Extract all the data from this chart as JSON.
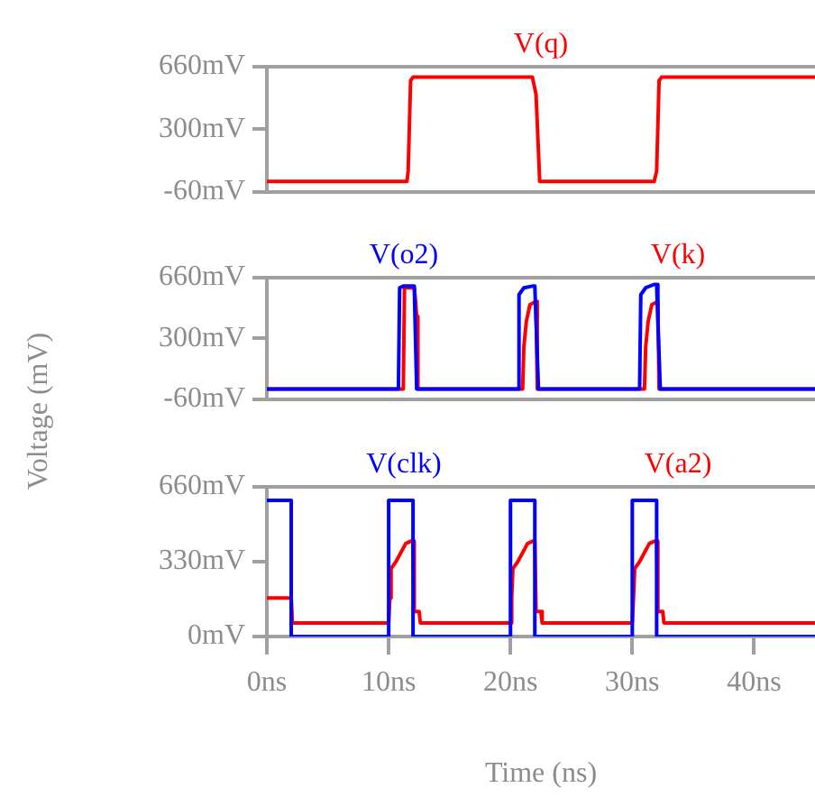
{
  "chart_data": [
    {
      "type": "line",
      "xlim": [
        0,
        45
      ],
      "ylim": [
        -60,
        660
      ],
      "yticks": [
        {
          "value": -60,
          "label": "-60mV"
        },
        {
          "value": 300,
          "label": "300mV"
        },
        {
          "value": 660,
          "label": "660mV"
        }
      ],
      "tick_labels": "y",
      "legend": "top",
      "grid": false,
      "series": [
        {
          "name": "V(q)",
          "color": "#ff0000",
          "x": [
            0,
            11.5,
            11.6,
            11.8,
            12.0,
            21.8,
            22.1,
            22.4,
            31.8,
            32.0,
            32.2,
            32.4,
            45
          ],
          "values": [
            0,
            0,
            60,
            580,
            600,
            600,
            500,
            0,
            0,
            60,
            580,
            600,
            600
          ]
        }
      ]
    },
    {
      "type": "line",
      "xlim": [
        0,
        45
      ],
      "ylim": [
        -60,
        660
      ],
      "yticks": [
        {
          "value": -60,
          "label": "-60mV"
        },
        {
          "value": 300,
          "label": "300mV"
        },
        {
          "value": 660,
          "label": "660mV"
        }
      ],
      "tick_labels": "y",
      "legend": "top",
      "grid": false,
      "ylabel": "Voltage (mV)",
      "series": [
        {
          "name": "V(o2)",
          "color": "#0000ff",
          "x": [
            0,
            10.8,
            10.9,
            11.2,
            12.1,
            12.3,
            20.6,
            20.7,
            21.1,
            21.8,
            22.0,
            22.1,
            22.3,
            30.6,
            30.7,
            31.1,
            31.8,
            32.0,
            32.1,
            32.3,
            45
          ],
          "values": [
            0,
            0,
            600,
            610,
            610,
            0,
            0,
            560,
            600,
            610,
            610,
            400,
            0,
            0,
            560,
            600,
            620,
            620,
            400,
            0,
            0
          ]
        },
        {
          "name": "V(k)",
          "color": "#ff0000",
          "x": [
            0,
            11.2,
            11.3,
            12.1,
            12.2,
            12.3,
            12.4,
            21.0,
            21.1,
            21.3,
            21.6,
            22.1,
            22.2,
            31.0,
            31.1,
            31.3,
            31.6,
            32.1,
            32.2,
            45
          ],
          "values": [
            0,
            0,
            600,
            600,
            530,
            430,
            0,
            0,
            250,
            400,
            500,
            520,
            0,
            0,
            250,
            400,
            500,
            520,
            0,
            0
          ]
        }
      ]
    },
    {
      "type": "line",
      "xlim": [
        0,
        45
      ],
      "xticks": [
        {
          "value": 0,
          "label": "0ns"
        },
        {
          "value": 10,
          "label": "10ns"
        },
        {
          "value": 20,
          "label": "20ns"
        },
        {
          "value": 30,
          "label": "30ns"
        },
        {
          "value": 40,
          "label": "40ns"
        }
      ],
      "ylim": [
        0,
        660
      ],
      "yticks": [
        {
          "value": 0,
          "label": "0mV"
        },
        {
          "value": 330,
          "label": "330mV"
        },
        {
          "value": 660,
          "label": "660mV"
        }
      ],
      "legend": "top",
      "grid": false,
      "xlabel": "Time (ns)",
      "series": [
        {
          "name": "V(clk)",
          "color": "#0000ff",
          "x": [
            0,
            2.0,
            2.0,
            10.0,
            10.0,
            12.0,
            12.0,
            20.0,
            20.0,
            22.0,
            22.0,
            30.0,
            30.0,
            32.0,
            32.0,
            45
          ],
          "values": [
            600,
            600,
            0,
            0,
            600,
            600,
            0,
            0,
            600,
            600,
            0,
            0,
            600,
            600,
            0,
            0
          ]
        },
        {
          "name": "V(a2)",
          "color": "#ff0000",
          "x": [
            0,
            2.0,
            2.1,
            10.0,
            10.1,
            10.2,
            10.6,
            11.0,
            11.4,
            11.8,
            12.0,
            12.1,
            12.5,
            12.6,
            20.0,
            20.1,
            20.2,
            20.6,
            21.0,
            21.4,
            21.8,
            22.0,
            22.1,
            22.5,
            22.6,
            30.0,
            30.1,
            30.2,
            30.6,
            31.0,
            31.4,
            31.8,
            32.0,
            32.1,
            32.5,
            32.6,
            45
          ],
          "values": [
            170,
            170,
            60,
            60,
            170,
            300,
            330,
            370,
            410,
            420,
            420,
            110,
            110,
            60,
            60,
            170,
            300,
            330,
            370,
            410,
            420,
            420,
            110,
            110,
            60,
            60,
            170,
            300,
            330,
            370,
            410,
            420,
            420,
            110,
            110,
            60,
            60
          ]
        }
      ]
    }
  ]
}
